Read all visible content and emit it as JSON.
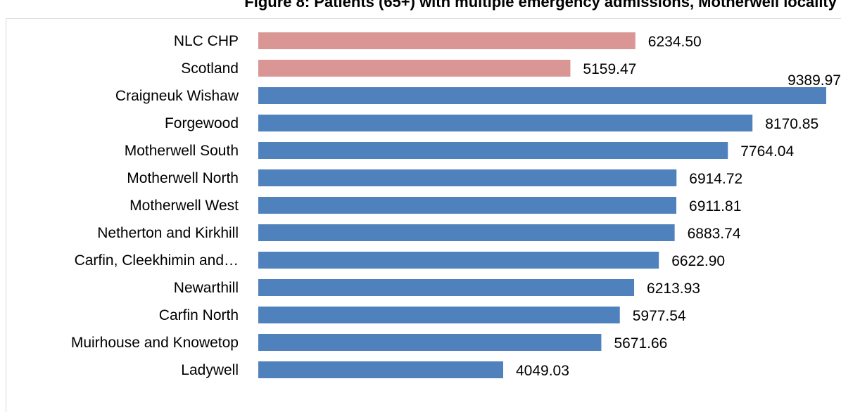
{
  "chart_data": {
    "type": "bar",
    "orientation": "horizontal",
    "title": "Figure 8: Patients (65+) with multiple emergency admissions, Motherwell locality",
    "categories": [
      "NLC CHP",
      "Scotland",
      "Craigneuk Wishaw",
      "Forgewood",
      "Motherwell South",
      "Motherwell North",
      "Motherwell West",
      "Netherton and Kirkhill",
      "Carfin, Cleekhimin and…",
      "Newarthill",
      "Carfin North",
      "Muirhouse and Knowetop",
      "Ladywell"
    ],
    "values": [
      6234.5,
      5159.47,
      9389.97,
      8170.85,
      7764.04,
      6914.72,
      6911.81,
      6883.74,
      6622.9,
      6213.93,
      5977.54,
      5671.66,
      4049.03
    ],
    "value_labels": [
      "6234.50",
      "5159.47",
      "9389.97",
      "8170.85",
      "7764.04",
      "6914.72",
      "6911.81",
      "6883.74",
      "6622.90",
      "6213.93",
      "5977.54",
      "5671.66",
      "4049.03"
    ],
    "bar_colors": [
      "#d99694",
      "#d99694",
      "#4f81bd",
      "#4f81bd",
      "#4f81bd",
      "#4f81bd",
      "#4f81bd",
      "#4f81bd",
      "#4f81bd",
      "#4f81bd",
      "#4f81bd",
      "#4f81bd",
      "#4f81bd"
    ],
    "xlim": [
      0,
      9389.97
    ],
    "grid": false,
    "legend": "none"
  }
}
